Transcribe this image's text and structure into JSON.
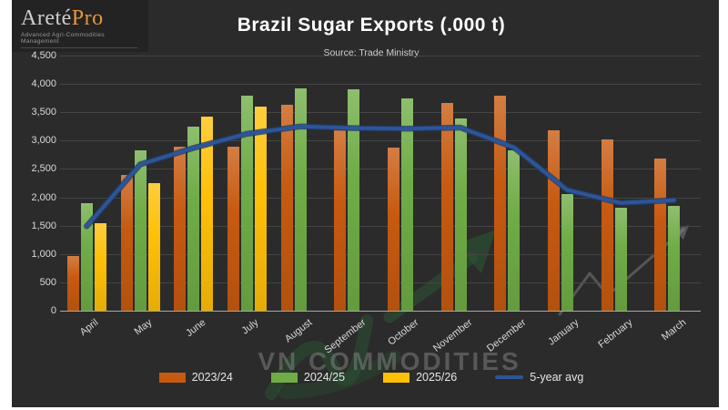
{
  "logo": {
    "brand_primary": "Areté",
    "brand_secondary": "Pro",
    "tagline": "Advanced Agri-Commodities Management"
  },
  "header": {
    "title": "Brazil Sugar Exports (.000 t)",
    "subtitle": "Source: Trade Ministry"
  },
  "watermark": {
    "text": "VN COMMODITIES"
  },
  "chart_data": {
    "type": "bar",
    "title": "Brazil Sugar Exports (.000 t)",
    "subtitle": "Source: Trade Ministry",
    "categories": [
      "April",
      "May",
      "June",
      "July",
      "August",
      "September",
      "October",
      "November",
      "December",
      "January",
      "February",
      "March"
    ],
    "series": [
      {
        "name": "2023/24",
        "type": "bar",
        "color": "#C75A10",
        "values": [
          970,
          2400,
          2900,
          2900,
          3640,
          3180,
          2880,
          3660,
          3800,
          3180,
          3020,
          2690
        ]
      },
      {
        "name": "2024/25",
        "type": "bar",
        "color": "#6FAC46",
        "values": [
          1890,
          2830,
          3240,
          3790,
          3920,
          3900,
          3740,
          3390,
          2830,
          2060,
          1820,
          1850
        ]
      },
      {
        "name": "2025/26",
        "type": "bar",
        "color": "#FFC008",
        "values": [
          1550,
          2250,
          3420,
          3600,
          null,
          null,
          null,
          null,
          null,
          null,
          null,
          null
        ]
      },
      {
        "name": "5-year avg",
        "type": "line",
        "color": "#2E5596",
        "values": [
          1490,
          2580,
          2870,
          3120,
          3250,
          3220,
          3210,
          3230,
          2880,
          2130,
          1900,
          1950
        ]
      }
    ],
    "ylim": [
      0,
      4500
    ],
    "ytick_step": 500,
    "grid": true,
    "legend_position": "bottom"
  },
  "colors": {
    "background": "#2B2B2B",
    "margin": "#FFFFFF",
    "logo_panel": "#232323",
    "gridline": "#454545",
    "axis_line": "#A9A9A9",
    "axis_text": "#D9D9D9",
    "title_text": "#FFFFFF",
    "brand_orange": "#E8953C",
    "line_edge": "#1F3C6E",
    "watermark_green": "#2B5A35",
    "watermark_gray": "#8C8C8C"
  }
}
